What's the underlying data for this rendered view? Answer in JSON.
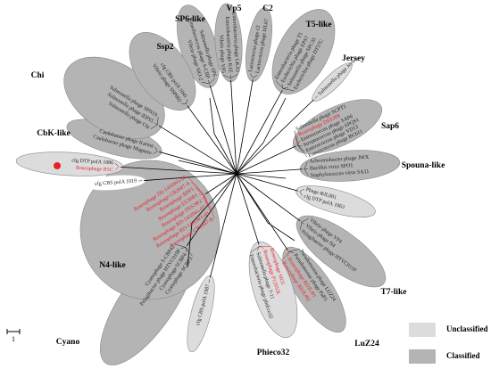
{
  "groups": [
    {
      "label": "SP6-like",
      "shade": "#b4b4b4",
      "leaves": [
        {
          "name": "Vibrio phage SIO-2",
          "color": "#222222"
        },
        {
          "name": "Synechococcus phage S-CBP",
          "color": "#222222"
        },
        {
          "name": "Salmonella phage SP6",
          "color": "#222222"
        }
      ]
    },
    {
      "label": "Vp5",
      "shade": "#b4b4b4",
      "leaves": [
        {
          "name": "Vibrio phage VP5",
          "color": "#222222"
        },
        {
          "name": "Enterobacteria phage K1E",
          "color": "#222222"
        },
        {
          "name": "Enterobacteria phage LKA1",
          "color": "#222222"
        }
      ]
    },
    {
      "label": "C2",
      "shade": "#b4b4b4",
      "leaves": [
        {
          "name": "Lactococcus phage c2",
          "color": "#222222"
        },
        {
          "name": "Lactococcus phage bIL67",
          "color": "#222222"
        }
      ]
    },
    {
      "label": "T5-like",
      "shade": "#b4b4b4",
      "leaves": [
        {
          "name": "Enterobacteria phage T5",
          "color": "#222222"
        },
        {
          "name": "Escherichia phage EPS7",
          "color": "#222222"
        },
        {
          "name": "Salmonella phage SPC35",
          "color": "#222222"
        },
        {
          "name": "Escherichia phage DT57C",
          "color": "#222222"
        }
      ]
    },
    {
      "label": "Jersey",
      "shade": "#dcdcdc",
      "leaves": [
        {
          "name": "Salmonella phage Jersey",
          "color": "#222222"
        }
      ]
    },
    {
      "label": "Sap6",
      "shade": "#b4b4b4",
      "leaves": [
        {
          "name": "Salmonella phage SCPT1",
          "color": "#222222"
        },
        {
          "name": "Roseophage DSS3P8",
          "color": "#e8202a"
        },
        {
          "name": "Enterococcus phage SAP6",
          "color": "#222222"
        },
        {
          "name": "Streptococcus phage SPQS1",
          "color": "#222222"
        },
        {
          "name": "Enterococcus phage VD13",
          "color": "#222222"
        },
        {
          "name": "Enterococcus phage BC611",
          "color": "#222222"
        }
      ]
    },
    {
      "label": "Spouna-like",
      "shade": "#b4b4b4",
      "leaves": [
        {
          "name": "Achromobacter phage JWX",
          "color": "#222222"
        },
        {
          "name": "Bacillus virus SPO1",
          "color": "#222222"
        },
        {
          "name": "Staphylococcus virus SA11",
          "color": "#222222"
        }
      ]
    },
    {
      "shade": "#dcdcdc",
      "leaves": [
        {
          "name": "Phage ΦJL001",
          "color": "#222222"
        },
        {
          "name": "cfg DTP polA 1063",
          "color": "#222222"
        }
      ]
    },
    {
      "label": "T7-like",
      "shade": "#b4b4b4",
      "leaves": [
        {
          "name": "Vibrio phage VP4",
          "color": "#222222"
        },
        {
          "name": "Vibrio phage N4",
          "color": "#222222"
        },
        {
          "name": "Pelagibacter phage HTVC011P",
          "color": "#222222"
        }
      ]
    },
    {
      "label": "LuZ24",
      "shade": "#b4b4b4",
      "leaves": [
        {
          "name": "Pseudomonas phage LUZ24",
          "color": "#222222"
        },
        {
          "name": "Pseudomonas phage PaP3",
          "color": "#222222"
        },
        {
          "name": "Roseophage RDJLΦ1",
          "color": "#e8202a"
        },
        {
          "name": "Roseophage RDJLΦ2",
          "color": "#e8202a"
        }
      ]
    },
    {
      "label": "Phieco32",
      "shade": "#dcdcdc",
      "leaves": [
        {
          "name": "Roseophage SIO1",
          "color": "#e8202a"
        },
        {
          "name": "Roseophage P12053L",
          "color": "#e8202a"
        },
        {
          "name": "Salmonella phage 7-11",
          "color": "#222222"
        },
        {
          "name": "Enterobacteria phage phiEco32",
          "color": "#222222"
        }
      ]
    },
    {
      "label": "Cyano",
      "shade": "#b4b4b4",
      "leaves": [
        {
          "name": "Cyanophage SCBP3",
          "color": "#222222"
        },
        {
          "name": "Cyanophage SCBP4",
          "color": "#222222"
        },
        {
          "name": "Pelagibacter phage HTVC019P",
          "color": "#222222"
        },
        {
          "name": "Cyanophage S-CBP42",
          "color": "#222222"
        }
      ]
    },
    {
      "shade": "#dcdcdc",
      "leaves": [
        {
          "name": "cfg CBS polA 1987",
          "color": "#222222"
        }
      ]
    },
    {
      "label": "N4-like",
      "shade": "#b4b4b4",
      "leaves": [
        {
          "name": "Roseophage CB2047-B",
          "color": "#e8202a"
        },
        {
          "name": "Roseophage RD-1410W1-01",
          "color": "#e8202a"
        },
        {
          "name": "Roseophage RD-1410Ws-07",
          "color": "#e8202a"
        },
        {
          "name": "Roseophage DSS3Φ2",
          "color": "#e8202a"
        },
        {
          "name": "Roseophage EE36Φ1",
          "color": "#e8202a"
        },
        {
          "name": "Roseophage RPP1",
          "color": "#e8202a"
        },
        {
          "name": "Roseophage CB2047-A",
          "color": "#e8202a"
        },
        {
          "name": "Roseophage DS-1410Ws-06",
          "color": "#e8202a"
        }
      ]
    },
    {
      "shade": "#dcdcdc",
      "leaves": [
        {
          "name": "Roseophage R5C",
          "color": "#e8202a"
        },
        {
          "name": "cfg DTP polA 1086",
          "color": "#222222"
        }
      ]
    },
    {
      "shade": "#ffffff",
      "leaves": [
        {
          "name": "cfg CBS polA 1019",
          "color": "#222222"
        }
      ]
    },
    {
      "label": "CbK-like",
      "shade": "#b4b4b4",
      "leaves": [
        {
          "name": "Caulobacter phage Magneto",
          "color": "#222222"
        },
        {
          "name": "Caulobacter phage Karma",
          "color": "#222222"
        }
      ]
    },
    {
      "label": "Chi",
      "shade": "#b4b4b4",
      "leaves": [
        {
          "name": "Salmonella phage Chi",
          "color": "#222222"
        },
        {
          "name": "Salmonella phage iEPS5",
          "color": "#222222"
        },
        {
          "name": "Salmonella phage SPN19",
          "color": "#222222"
        }
      ]
    },
    {
      "label": "Ssp2",
      "shade": "#b4b4b4",
      "leaves": [
        {
          "name": "Vibrio phage SSP002",
          "color": "#222222"
        },
        {
          "name": "cfg CBS polA 1041",
          "color": "#222222"
        }
      ]
    }
  ],
  "legend": [
    {
      "label": "Unclassified",
      "color": "#dcdcdc"
    },
    {
      "label": "Classified",
      "color": "#b4b4b4"
    }
  ],
  "scale_label": "1"
}
